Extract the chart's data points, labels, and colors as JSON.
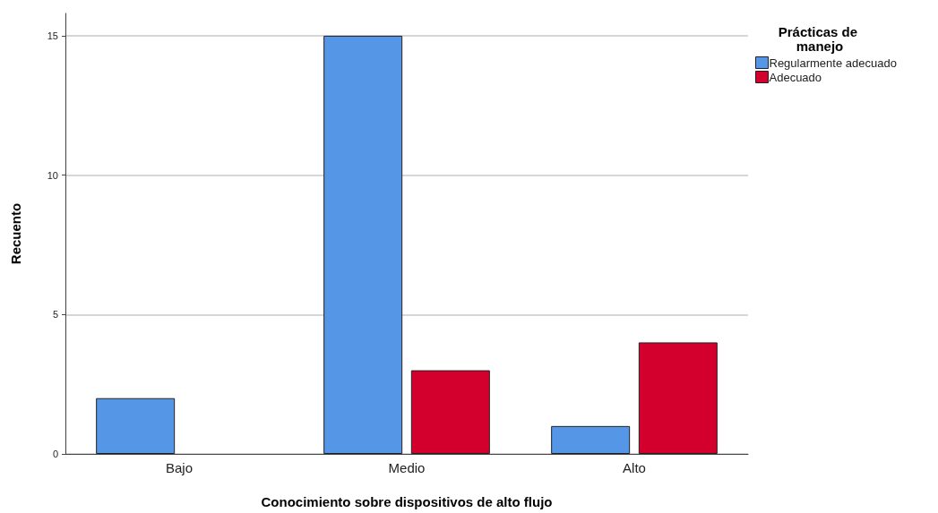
{
  "chart_data": {
    "type": "bar",
    "xlabel": "Conocimiento sobre dispositivos de alto flujo",
    "ylabel": "Recuento",
    "legend_title": "Prácticas de manejo",
    "categories": [
      "Bajo",
      "Medio",
      "Alto"
    ],
    "series": [
      {
        "name": "Regularmente adecuado",
        "color": "#5596e6",
        "values": [
          2,
          15,
          1
        ]
      },
      {
        "name": "Adecuado",
        "color": "#d3002d",
        "values": [
          null,
          3,
          4
        ]
      }
    ],
    "ylim": [
      0,
      15.8
    ],
    "yticks": [
      0,
      5,
      10,
      15
    ],
    "grid": "y",
    "legend": "top right"
  }
}
